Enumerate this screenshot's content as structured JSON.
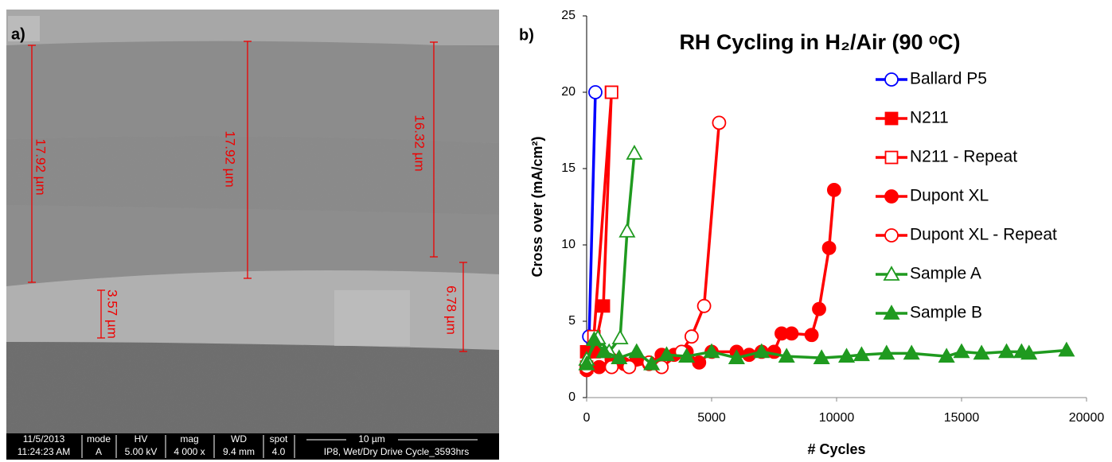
{
  "panel_a": {
    "label": "a)",
    "measurements": [
      "17.92 µm",
      "17.92 µm",
      "16.32 µm",
      "3.57 µm",
      "6.78 µm"
    ],
    "info_bar": {
      "date": "11/5/2013",
      "time": "11:24:23 AM",
      "mode_label": "mode",
      "mode": "A",
      "hv_label": "HV",
      "hv": "5.00 kV",
      "mag_label": "mag",
      "mag": "4 000 x",
      "wd_label": "WD",
      "wd": "9.4 mm",
      "spot_label": "spot",
      "spot": "4.0",
      "scale": "10 µm",
      "description": "IP8, Wet/Dry Drive Cycle_3593hrs"
    }
  },
  "chart_data": {
    "type": "line",
    "panel_label": "b)",
    "title": "RH Cycling in H₂/Air (90 ᵒC)",
    "x_label": "# Cycles",
    "y_label": "Cross over (mA/cm²)",
    "xlim": [
      0,
      20000
    ],
    "xticks": [
      0,
      5000,
      10000,
      15000,
      20000
    ],
    "ylim": [
      0,
      25
    ],
    "yticks": [
      0,
      5,
      10,
      15,
      20,
      25
    ],
    "grid": false,
    "legend": "right",
    "series": [
      {
        "name": "Ballard P5",
        "color": "#0000ff",
        "marker": "circle",
        "filled": false,
        "x": [
          0,
          100,
          350
        ],
        "values": [
          2,
          4,
          20
        ]
      },
      {
        "name": "N211",
        "color": "#ff0000",
        "marker": "square",
        "filled": true,
        "x": [
          0,
          300,
          670,
          990
        ],
        "values": [
          3,
          3,
          6,
          20
        ]
      },
      {
        "name": "N211 - Repeat",
        "color": "#ff0000",
        "marker": "square",
        "filled": false,
        "x": [
          0,
          290,
          1000
        ],
        "values": [
          2,
          4,
          20
        ]
      },
      {
        "name": "Dupont XL",
        "color": "#ff0000",
        "marker": "circle",
        "filled": true,
        "x": [
          0,
          500,
          1000,
          1500,
          2000,
          2500,
          3000,
          3500,
          4000,
          4500,
          5000,
          6000,
          6500,
          7000,
          7500,
          7800,
          8200,
          9000,
          9300,
          9700,
          9900
        ],
        "values": [
          1.8,
          2,
          2.5,
          2.2,
          2.5,
          2.2,
          2.8,
          2.8,
          3,
          2.3,
          3,
          3,
          2.8,
          3,
          3,
          4.2,
          4.2,
          4.1,
          5.8,
          9.8,
          13.6
        ]
      },
      {
        "name": "Dupont XL - Repeat",
        "color": "#ff0000",
        "marker": "circle",
        "filled": false,
        "x": [
          0,
          1000,
          1700,
          2500,
          3000,
          3800,
          4200,
          4700,
          5300
        ],
        "values": [
          2,
          2,
          2,
          2.3,
          2,
          3,
          4,
          6,
          18
        ]
      },
      {
        "name": "Sample A",
        "color": "#1f9a1f",
        "marker": "triangle",
        "filled": false,
        "x": [
          0,
          450,
          900,
          1340,
          1620,
          1910
        ],
        "values": [
          2.5,
          3.9,
          3,
          3.9,
          10.9,
          16
        ]
      },
      {
        "name": "Sample B",
        "color": "#1f9a1f",
        "marker": "triangle",
        "filled": true,
        "x": [
          0,
          300,
          700,
          1300,
          2000,
          2600,
          3200,
          4000,
          5000,
          6000,
          7000,
          8000,
          9400,
          10400,
          11000,
          12000,
          13000,
          14400,
          15000,
          15800,
          16800,
          17400,
          17700,
          19200
        ],
        "values": [
          2.2,
          3.8,
          3,
          2.6,
          3,
          2.2,
          2.8,
          2.7,
          3,
          2.6,
          3,
          2.7,
          2.6,
          2.7,
          2.8,
          2.9,
          2.9,
          2.7,
          3,
          2.9,
          3,
          3,
          2.9,
          3.1
        ]
      }
    ]
  }
}
